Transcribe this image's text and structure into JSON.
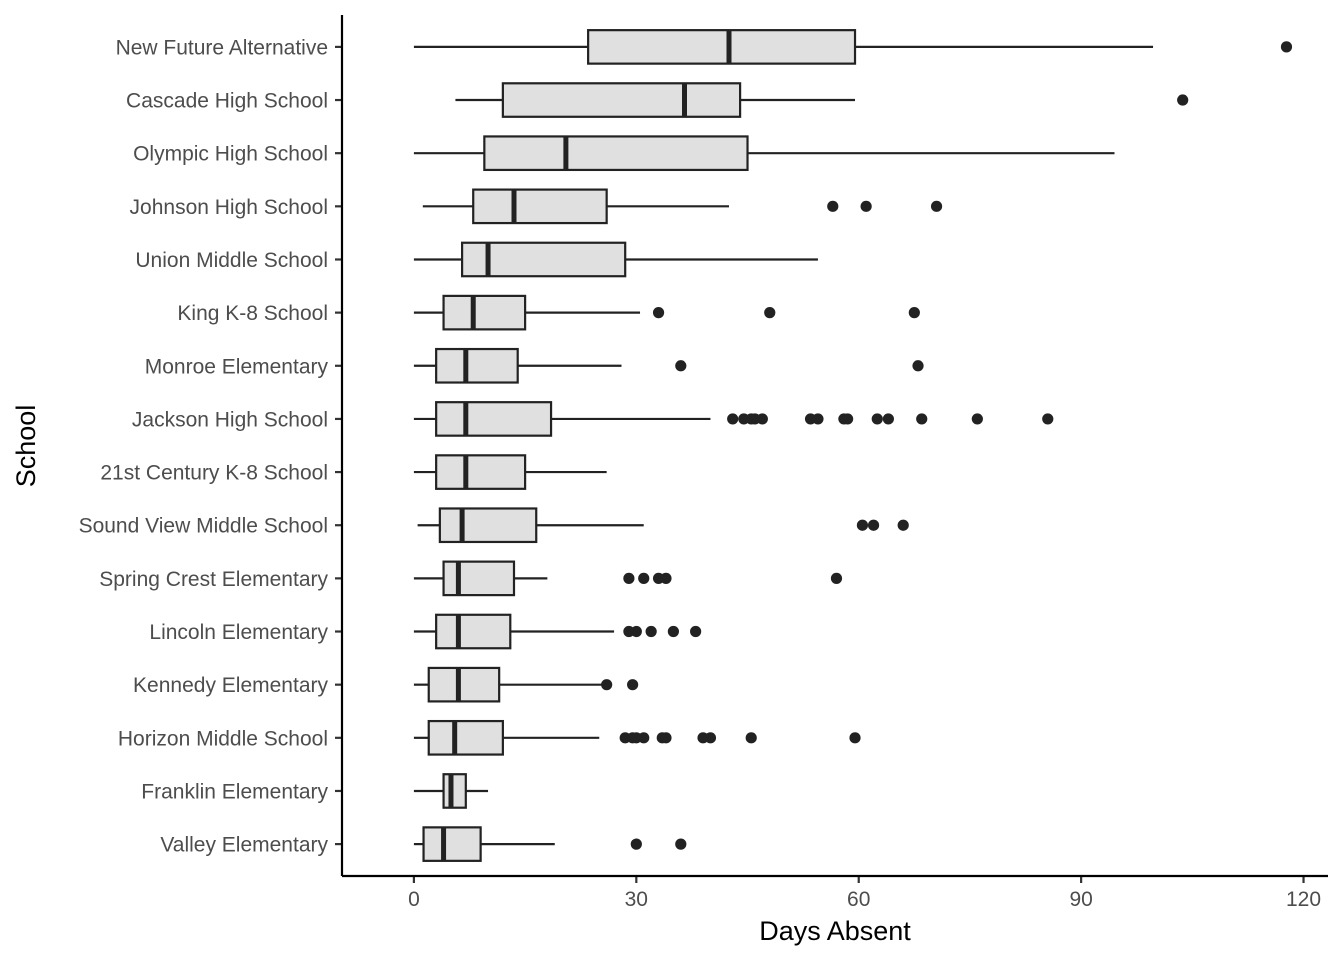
{
  "chart_data": {
    "type": "boxplot",
    "orientation": "horizontal",
    "xlabel": "Days Absent",
    "ylabel": "School",
    "xlim": [
      -9.7,
      123.3
    ],
    "x_ticks": [
      0,
      30,
      60,
      90,
      120
    ],
    "grid": false,
    "legend": "none",
    "colors": {
      "box_fill": "#e0e0e0",
      "stroke": "#222222",
      "axis": "#000000",
      "tick_text": "#4d4d4d"
    },
    "categories": [
      {
        "label": "New Future Alternative",
        "min": 0,
        "q1": 23.5,
        "median": 42.5,
        "q3": 59.5,
        "max": 99.7,
        "outliers": [
          117.7
        ]
      },
      {
        "label": "Cascade High School",
        "min": 5.6,
        "q1": 12,
        "median": 36.5,
        "q3": 44,
        "max": 59.5,
        "outliers": [
          103.7
        ]
      },
      {
        "label": "Olympic High School",
        "min": 0,
        "q1": 9.5,
        "median": 20.5,
        "q3": 45,
        "max": 94.5,
        "outliers": []
      },
      {
        "label": "Johnson High School",
        "min": 1.2,
        "q1": 8,
        "median": 13.5,
        "q3": 26,
        "max": 42.5,
        "outliers": [
          56.5,
          61,
          70.5
        ]
      },
      {
        "label": "Union Middle School",
        "min": 0,
        "q1": 6.5,
        "median": 10,
        "q3": 28.5,
        "max": 54.5,
        "outliers": []
      },
      {
        "label": "King K-8 School",
        "min": 0,
        "q1": 4,
        "median": 8,
        "q3": 15,
        "max": 30.5,
        "outliers": [
          33,
          48,
          67.5
        ]
      },
      {
        "label": "Monroe Elementary",
        "min": 0,
        "q1": 3,
        "median": 7,
        "q3": 14,
        "max": 28,
        "outliers": [
          36,
          68
        ]
      },
      {
        "label": "Jackson High School",
        "min": 0,
        "q1": 3,
        "median": 7,
        "q3": 18.5,
        "max": 40,
        "outliers": [
          43,
          44.5,
          45.5,
          46,
          47,
          53.5,
          54.5,
          58,
          58.5,
          62.5,
          64,
          68.5,
          76,
          85.5
        ]
      },
      {
        "label": "21st Century K-8 School",
        "min": 0,
        "q1": 3,
        "median": 7,
        "q3": 15,
        "max": 26,
        "outliers": []
      },
      {
        "label": "Sound View Middle School",
        "min": 0.5,
        "q1": 3.5,
        "median": 6.5,
        "q3": 16.5,
        "max": 31,
        "outliers": [
          60.5,
          62,
          66
        ]
      },
      {
        "label": "Spring Crest Elementary",
        "min": 0,
        "q1": 4,
        "median": 6,
        "q3": 13.5,
        "max": 18,
        "outliers": [
          29,
          31,
          33,
          34,
          57
        ]
      },
      {
        "label": "Lincoln Elementary",
        "min": 0,
        "q1": 3,
        "median": 6,
        "q3": 13,
        "max": 27,
        "outliers": [
          29,
          30,
          32,
          35,
          38
        ]
      },
      {
        "label": "Kennedy Elementary",
        "min": 0,
        "q1": 2,
        "median": 6,
        "q3": 11.5,
        "max": 26,
        "outliers": [
          26,
          29.5
        ]
      },
      {
        "label": "Horizon Middle School",
        "min": 0,
        "q1": 2,
        "median": 5.5,
        "q3": 12,
        "max": 25,
        "outliers": [
          28.5,
          29.5,
          30,
          31,
          33.5,
          34,
          39,
          40,
          45.5,
          59.5
        ]
      },
      {
        "label": "Franklin Elementary",
        "min": 0,
        "q1": 4,
        "median": 5,
        "q3": 7,
        "max": 10,
        "outliers": []
      },
      {
        "label": "Valley Elementary",
        "min": 0,
        "q1": 1.3,
        "median": 4,
        "q3": 9,
        "max": 19,
        "outliers": [
          30,
          36
        ]
      }
    ]
  }
}
